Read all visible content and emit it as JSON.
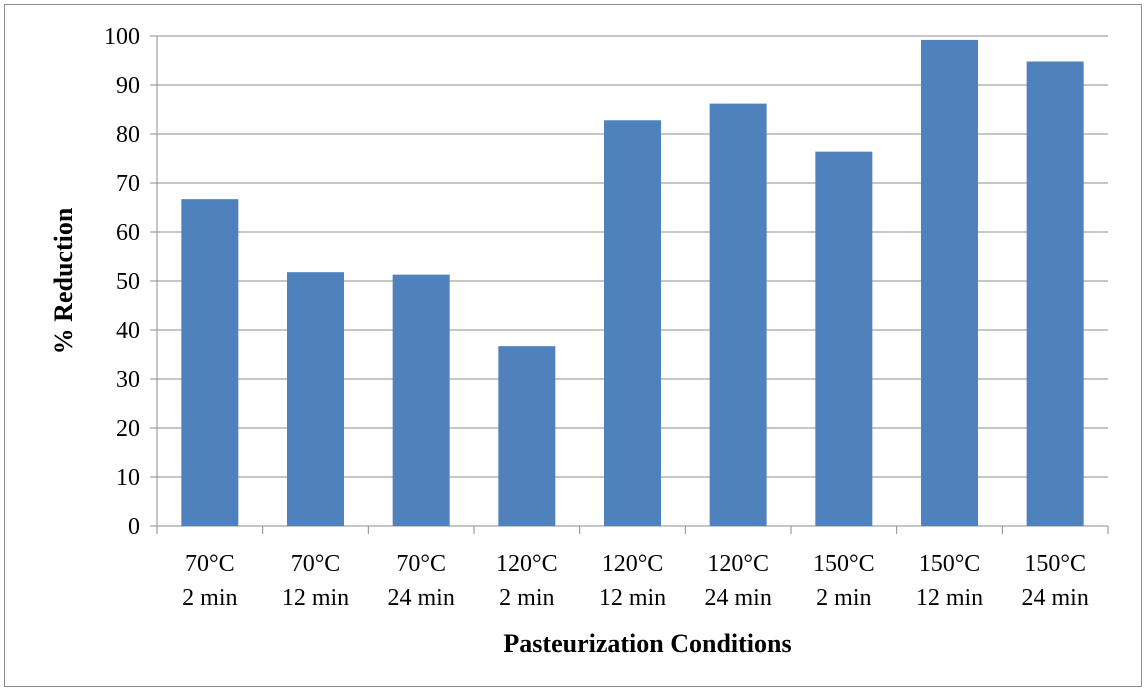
{
  "chart_data": {
    "type": "bar",
    "title": "",
    "xlabel": "Pasteurization Conditions",
    "ylabel": "% Reduction",
    "ylim": [
      0,
      100
    ],
    "yticks": [
      0,
      10,
      20,
      30,
      40,
      50,
      60,
      70,
      80,
      90,
      100
    ],
    "categories": [
      [
        "70°C",
        "2 min"
      ],
      [
        "70°C",
        "12 min"
      ],
      [
        "70°C",
        "24 min"
      ],
      [
        "120°C",
        "2 min"
      ],
      [
        "120°C",
        "12 min"
      ],
      [
        "120°C",
        "24 min"
      ],
      [
        "150°C",
        "2 min"
      ],
      [
        "150°C",
        "12 min"
      ],
      [
        "150°C",
        "24 min"
      ]
    ],
    "series": [
      {
        "values": [
          66.7,
          51.8,
          51.3,
          36.7,
          82.8,
          86.2,
          76.4,
          99.2,
          94.8
        ]
      }
    ],
    "grid": true,
    "legend": "none",
    "bar_color": "#4f81bd",
    "grid_color": "#8c8c8c"
  }
}
